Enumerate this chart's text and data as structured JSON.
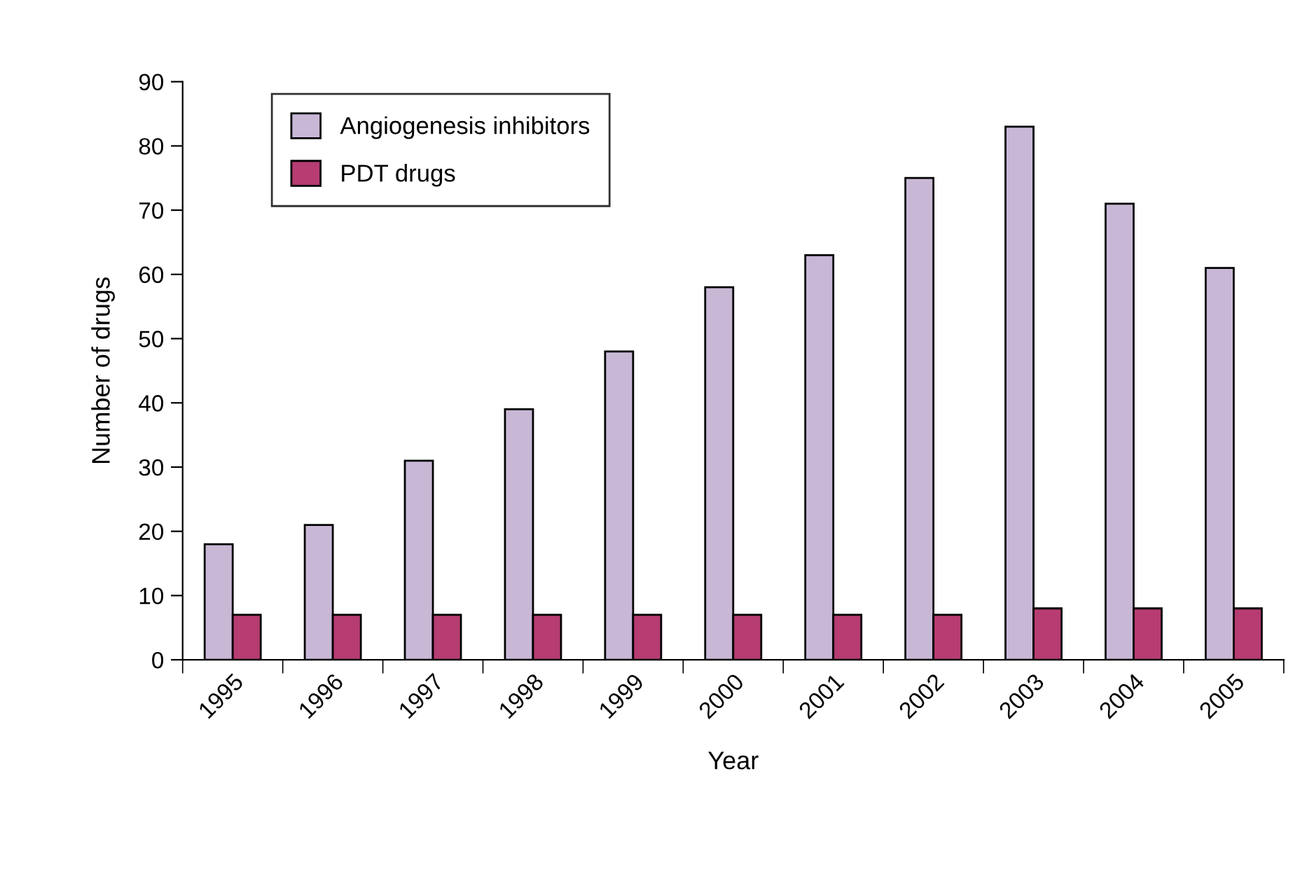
{
  "chart_data": {
    "type": "bar",
    "xlabel": "Year",
    "ylabel": "Number of drugs",
    "categories": [
      "1995",
      "1996",
      "1997",
      "1998",
      "1999",
      "2000",
      "2001",
      "2002",
      "2003",
      "2004",
      "2005"
    ],
    "series": [
      {
        "name": "Angiogenesis inhibitors",
        "color": "#c8b8d6",
        "values": [
          18,
          21,
          31,
          39,
          48,
          58,
          63,
          75,
          83,
          71,
          61
        ]
      },
      {
        "name": "PDT drugs",
        "color": "#b63c72",
        "values": [
          7,
          7,
          7,
          7,
          7,
          7,
          7,
          7,
          8,
          8,
          8
        ]
      }
    ],
    "ylim": [
      0,
      90
    ],
    "yticks": [
      0,
      10,
      20,
      30,
      40,
      50,
      60,
      70,
      80,
      90
    ],
    "grid": false,
    "legend": "top left"
  }
}
